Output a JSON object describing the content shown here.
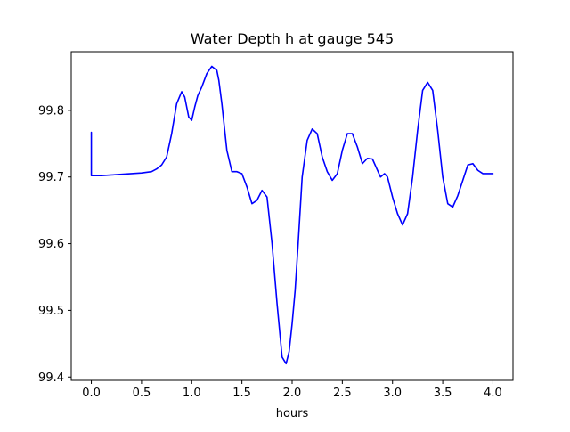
{
  "chart_data": {
    "type": "line",
    "title": "Water Depth h at gauge 545",
    "xlabel": "hours",
    "ylabel": "",
    "xlim": [
      -0.2,
      4.2
    ],
    "ylim": [
      99.395,
      99.888
    ],
    "x_ticks": [
      0.0,
      0.5,
      1.0,
      1.5,
      2.0,
      2.5,
      3.0,
      3.5,
      4.0
    ],
    "x_tick_labels": [
      "0.0",
      "0.5",
      "1.0",
      "1.5",
      "2.0",
      "2.5",
      "3.0",
      "3.5",
      "4.0"
    ],
    "y_ticks": [
      99.4,
      99.5,
      99.6,
      99.7,
      99.8
    ],
    "y_tick_labels": [
      "99.4",
      "99.5",
      "99.6",
      "99.7",
      "99.8"
    ],
    "grid": false,
    "series": [
      {
        "color": "#0000ff",
        "x": [
          0.0,
          0.0,
          0.0,
          0.1,
          0.2,
          0.3,
          0.4,
          0.5,
          0.6,
          0.65,
          0.7,
          0.75,
          0.8,
          0.85,
          0.9,
          0.93,
          0.97,
          1.0,
          1.03,
          1.06,
          1.1,
          1.15,
          1.2,
          1.25,
          1.27,
          1.3,
          1.35,
          1.4,
          1.45,
          1.5,
          1.55,
          1.6,
          1.65,
          1.7,
          1.75,
          1.8,
          1.85,
          1.9,
          1.94,
          1.97,
          2.0,
          2.03,
          2.06,
          2.1,
          2.15,
          2.2,
          2.25,
          2.3,
          2.35,
          2.4,
          2.45,
          2.5,
          2.55,
          2.6,
          2.65,
          2.7,
          2.75,
          2.8,
          2.85,
          2.88,
          2.92,
          2.95,
          3.0,
          3.05,
          3.1,
          3.15,
          3.2,
          3.25,
          3.3,
          3.35,
          3.4,
          3.45,
          3.5,
          3.55,
          3.6,
          3.65,
          3.7,
          3.75,
          3.8,
          3.85,
          3.9,
          3.95,
          4.0
        ],
        "y": [
          99.767,
          99.702,
          99.702,
          99.702,
          99.703,
          99.704,
          99.705,
          99.706,
          99.708,
          99.712,
          99.718,
          99.73,
          99.765,
          99.81,
          99.828,
          99.82,
          99.79,
          99.785,
          99.805,
          99.822,
          99.835,
          99.855,
          99.866,
          99.86,
          99.845,
          99.81,
          99.74,
          99.708,
          99.708,
          99.705,
          99.685,
          99.66,
          99.665,
          99.68,
          99.67,
          99.6,
          99.51,
          99.43,
          99.42,
          99.438,
          99.48,
          99.53,
          99.6,
          99.7,
          99.755,
          99.772,
          99.765,
          99.73,
          99.708,
          99.695,
          99.705,
          99.74,
          99.765,
          99.765,
          99.745,
          99.72,
          99.728,
          99.727,
          99.71,
          99.7,
          99.705,
          99.7,
          99.67,
          99.645,
          99.628,
          99.645,
          99.7,
          99.77,
          99.83,
          99.842,
          99.83,
          99.77,
          99.7,
          99.66,
          99.655,
          99.672,
          99.695,
          99.718,
          99.72,
          99.71,
          99.705,
          99.705,
          99.705
        ]
      }
    ]
  }
}
